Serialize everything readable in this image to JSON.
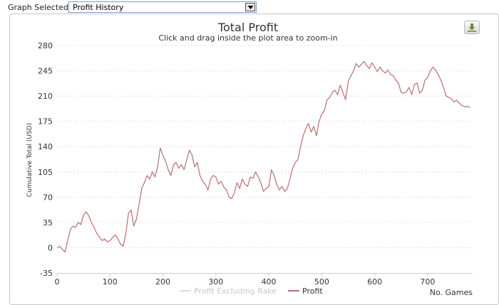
{
  "toolbar": {
    "graph_selected_label": "Graph Selected:",
    "graph_select_value": "Profit History"
  },
  "icons": {
    "dropdown": "chevron-down-icon",
    "download": "download-icon"
  },
  "colors": {
    "profit_line": "#b96f6f",
    "excluding_rake_line": "#dcdcdc",
    "grid": "#cccccc"
  },
  "chart_data": {
    "type": "line",
    "title": "Total Profit",
    "subtitle": "Click and drag inside the plot area to zoom-in",
    "xlabel": "No. Games",
    "ylabel": "Cumulative Total (USD)",
    "xlim": [
      0,
      785
    ],
    "ylim": [
      -35,
      280
    ],
    "xticks": [
      0,
      100,
      200,
      300,
      400,
      500,
      600,
      700
    ],
    "yticks": [
      -35,
      0,
      35,
      70,
      105,
      140,
      175,
      210,
      245,
      280
    ],
    "grid": "horizontal-dotted",
    "legend_position": "bottom-center",
    "series": [
      {
        "name": "Profit Excluding Rake",
        "color": "#dcdcdc",
        "x": [],
        "y": []
      },
      {
        "name": "Profit",
        "color": "#b96f6f",
        "x": [
          0,
          5,
          10,
          15,
          20,
          25,
          30,
          35,
          40,
          45,
          50,
          55,
          60,
          65,
          70,
          75,
          80,
          85,
          90,
          95,
          100,
          105,
          110,
          115,
          120,
          125,
          130,
          135,
          140,
          145,
          150,
          155,
          160,
          165,
          170,
          175,
          180,
          185,
          190,
          195,
          200,
          205,
          210,
          215,
          220,
          225,
          230,
          235,
          240,
          245,
          250,
          255,
          260,
          265,
          270,
          275,
          280,
          285,
          290,
          295,
          300,
          305,
          310,
          315,
          320,
          325,
          330,
          335,
          340,
          345,
          350,
          355,
          360,
          365,
          370,
          375,
          380,
          385,
          390,
          395,
          400,
          405,
          410,
          415,
          420,
          425,
          430,
          435,
          440,
          445,
          450,
          455,
          460,
          465,
          470,
          475,
          480,
          485,
          490,
          495,
          500,
          505,
          510,
          515,
          520,
          525,
          530,
          535,
          540,
          545,
          550,
          555,
          560,
          565,
          570,
          575,
          580,
          585,
          590,
          595,
          600,
          605,
          610,
          615,
          620,
          625,
          630,
          635,
          640,
          645,
          650,
          655,
          660,
          665,
          670,
          675,
          680,
          685,
          690,
          695,
          700,
          705,
          710,
          715,
          720,
          725,
          730,
          735,
          740,
          745,
          750,
          755,
          760,
          765,
          770,
          775,
          780
        ],
        "y": [
          0,
          2,
          -2,
          -6,
          10,
          25,
          30,
          28,
          35,
          32,
          45,
          50,
          44,
          35,
          28,
          20,
          15,
          10,
          12,
          8,
          10,
          14,
          18,
          12,
          5,
          2,
          20,
          48,
          52,
          30,
          40,
          60,
          82,
          90,
          100,
          95,
          105,
          98,
          112,
          138,
          128,
          120,
          108,
          100,
          115,
          118,
          110,
          115,
          108,
          122,
          135,
          128,
          112,
          118,
          100,
          92,
          88,
          80,
          95,
          100,
          98,
          88,
          92,
          84,
          80,
          70,
          68,
          76,
          90,
          82,
          95,
          88,
          85,
          98,
          96,
          105,
          98,
          90,
          78,
          82,
          85,
          108,
          100,
          88,
          80,
          85,
          78,
          82,
          95,
          110,
          118,
          122,
          140,
          155,
          165,
          172,
          160,
          168,
          155,
          175,
          185,
          190,
          205,
          208,
          215,
          218,
          212,
          225,
          215,
          205,
          230,
          238,
          245,
          255,
          250,
          254,
          258,
          252,
          248,
          256,
          250,
          244,
          250,
          245,
          242,
          246,
          240,
          238,
          232,
          228,
          215,
          214,
          216,
          222,
          212,
          226,
          228,
          214,
          218,
          232,
          236,
          245,
          250,
          246,
          240,
          232,
          222,
          210,
          208,
          206,
          202,
          204,
          200,
          197,
          195,
          196,
          194
        ]
      }
    ]
  }
}
